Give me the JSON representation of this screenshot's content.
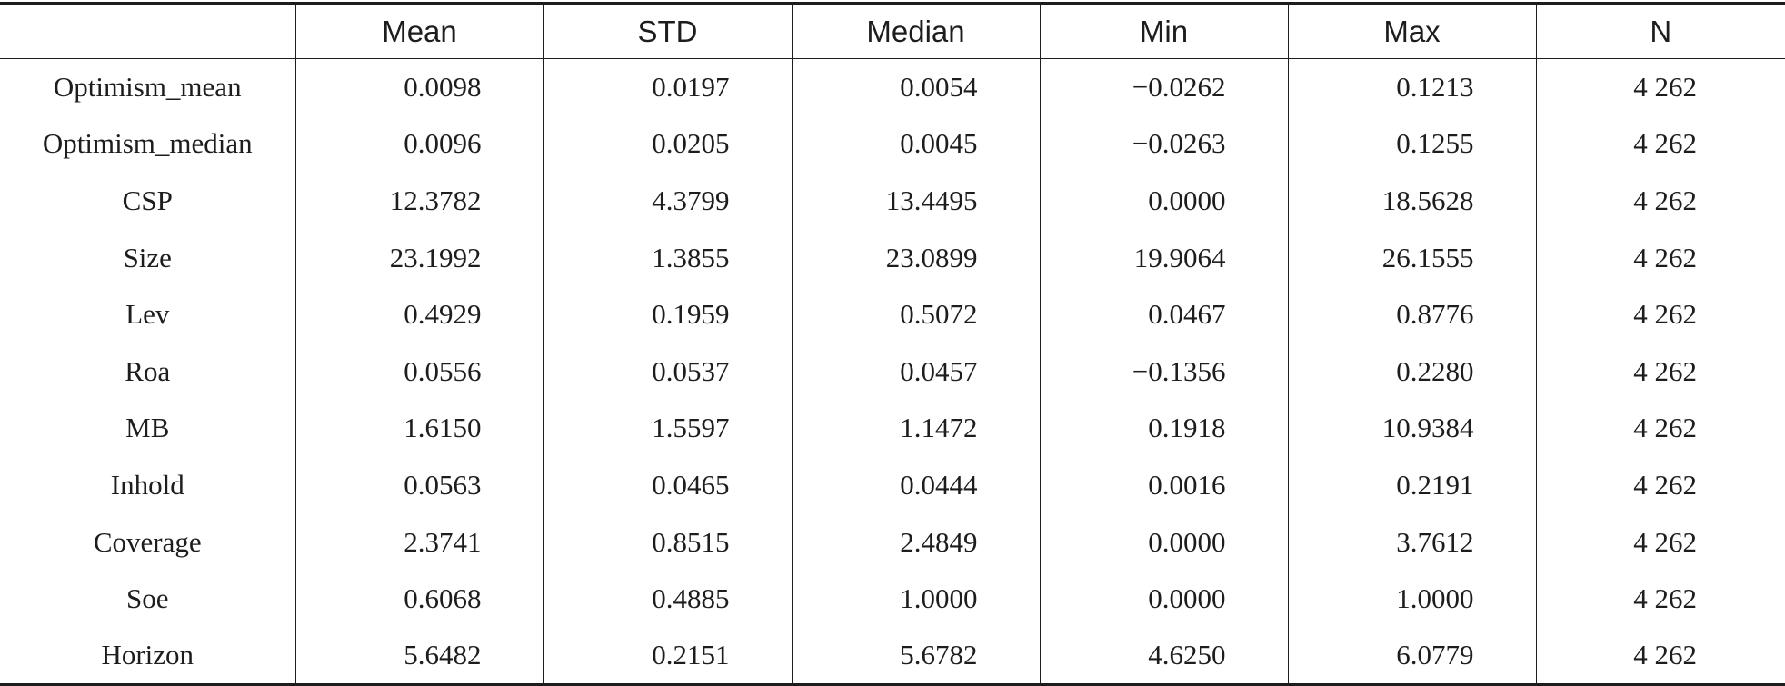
{
  "table": {
    "headers": [
      "",
      "Mean",
      "STD",
      "Median",
      "Min",
      "Max",
      "N"
    ],
    "rows": [
      {
        "label": "Optimism_mean",
        "values": [
          "0.0098",
          "0.0197",
          "0.0054",
          "−0.0262",
          "0.1213",
          "4 262"
        ]
      },
      {
        "label": "Optimism_median",
        "values": [
          "0.0096",
          "0.0205",
          "0.0045",
          "−0.0263",
          "0.1255",
          "4 262"
        ]
      },
      {
        "label": "CSP",
        "values": [
          "12.3782",
          "4.3799",
          "13.4495",
          "0.0000",
          "18.5628",
          "4 262"
        ]
      },
      {
        "label": "Size",
        "values": [
          "23.1992",
          "1.3855",
          "23.0899",
          "19.9064",
          "26.1555",
          "4 262"
        ]
      },
      {
        "label": "Lev",
        "values": [
          "0.4929",
          "0.1959",
          "0.5072",
          "0.0467",
          "0.8776",
          "4 262"
        ]
      },
      {
        "label": "Roa",
        "values": [
          "0.0556",
          "0.0537",
          "0.0457",
          "−0.1356",
          "0.2280",
          "4 262"
        ]
      },
      {
        "label": "MB",
        "values": [
          "1.6150",
          "1.5597",
          "1.1472",
          "0.1918",
          "10.9384",
          "4 262"
        ]
      },
      {
        "label": "Inhold",
        "values": [
          "0.0563",
          "0.0465",
          "0.0444",
          "0.0016",
          "0.2191",
          "4 262"
        ]
      },
      {
        "label": "Coverage",
        "values": [
          "2.3741",
          "0.8515",
          "2.4849",
          "0.0000",
          "3.7612",
          "4 262"
        ]
      },
      {
        "label": "Soe",
        "values": [
          "0.6068",
          "0.4885",
          "1.0000",
          "0.0000",
          "1.0000",
          "4 262"
        ]
      },
      {
        "label": "Horizon",
        "values": [
          "5.6482",
          "0.2151",
          "5.6782",
          "4.6250",
          "6.0779",
          "4 262"
        ]
      }
    ]
  }
}
